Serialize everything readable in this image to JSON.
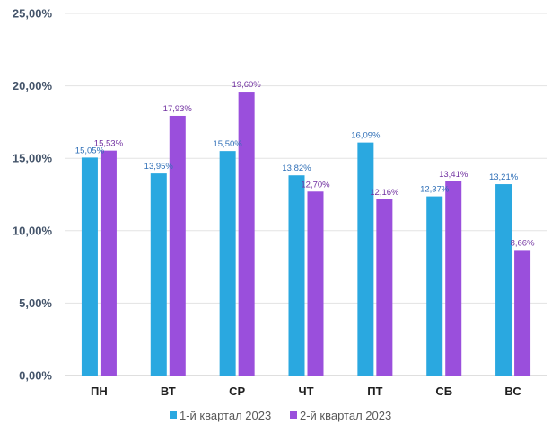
{
  "chart_data": {
    "type": "bar",
    "categories": [
      "ПН",
      "ВТ",
      "СР",
      "ЧТ",
      "ПТ",
      "СБ",
      "ВС"
    ],
    "series": [
      {
        "name": "1-й квартал 2023",
        "color": "#2aa8e0",
        "values": [
          15.05,
          13.95,
          15.5,
          13.82,
          16.09,
          12.37,
          13.21
        ],
        "labels": [
          "15,05%",
          "13,95%",
          "15,50%",
          "13,82%",
          "16,09%",
          "12,37%",
          "13,21%"
        ],
        "label_color": "#2f6fb7"
      },
      {
        "name": "2-й квартал 2023",
        "color": "#9a4fdc",
        "values": [
          15.53,
          17.93,
          19.6,
          12.7,
          12.16,
          13.41,
          8.66
        ],
        "labels": [
          "15,53%",
          "17,93%",
          "19,60%",
          "12,70%",
          "12,16%",
          "13,41%",
          "8,66%"
        ],
        "label_color": "#7030a0"
      }
    ],
    "ylim": [
      0,
      25
    ],
    "yticks": [
      0,
      5,
      10,
      15,
      20,
      25
    ],
    "ytick_labels": [
      "0,00%",
      "5,00%",
      "10,00%",
      "15,00%",
      "20,00%",
      "25,00%"
    ],
    "grid": true,
    "legend_position": "bottom",
    "title": "",
    "xlabel": "",
    "ylabel": ""
  }
}
